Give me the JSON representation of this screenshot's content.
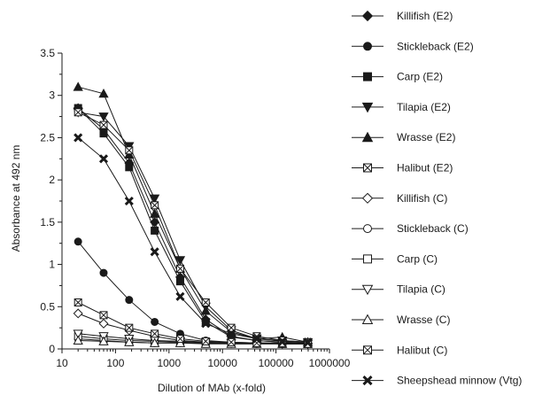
{
  "chart_data": {
    "type": "line",
    "title": "",
    "xlabel": "Dilution of MAb (x-fold)",
    "ylabel": "Absorbance at  492 nm",
    "xscale": "log",
    "xlim": [
      10,
      1000000
    ],
    "ylim": [
      0,
      3.5
    ],
    "x_ticks": [
      10,
      100,
      1000,
      10000,
      100000,
      1000000
    ],
    "x_tick_labels": [
      "10",
      "100",
      "1000",
      "10000",
      "100000",
      "1000000"
    ],
    "y_ticks": [
      0,
      0.5,
      1,
      1.5,
      2,
      2.5,
      3,
      3.5
    ],
    "y_tick_labels": [
      "0",
      "0.5",
      "1",
      "1.5",
      "2",
      "2.5",
      "3",
      "3.5"
    ],
    "grid": false,
    "legend_position": "right",
    "x": [
      20,
      60,
      180,
      540,
      1620,
      4860,
      14580,
      43740,
      131220,
      393660
    ],
    "series": [
      {
        "name": "Killifish (E2)",
        "marker": "diamond",
        "filled": true,
        "values": [
          2.85,
          2.6,
          2.2,
          1.5,
          0.85,
          0.35,
          0.15,
          0.1,
          0.08,
          0.07
        ]
      },
      {
        "name": "Stickleback (E2)",
        "marker": "circle",
        "filled": true,
        "values": [
          1.27,
          0.9,
          0.58,
          0.32,
          0.18,
          0.1,
          0.08,
          0.07,
          0.06,
          0.06
        ]
      },
      {
        "name": "Carp (E2)",
        "marker": "square",
        "filled": true,
        "values": [
          2.85,
          2.55,
          2.15,
          1.4,
          0.8,
          0.32,
          0.14,
          0.1,
          0.08,
          0.07
        ]
      },
      {
        "name": "Tilapia (E2)",
        "marker": "triangle-down",
        "filled": true,
        "values": [
          2.8,
          2.75,
          2.4,
          1.78,
          1.05,
          0.5,
          0.22,
          0.12,
          0.1,
          0.08
        ]
      },
      {
        "name": "Wrasse (E2)",
        "marker": "triangle-up",
        "filled": true,
        "values": [
          3.1,
          3.02,
          2.3,
          1.6,
          0.95,
          0.45,
          0.2,
          0.12,
          0.14,
          0.08
        ]
      },
      {
        "name": "Halibut (E2)",
        "marker": "square-x",
        "filled": false,
        "values": [
          2.8,
          2.65,
          2.35,
          1.7,
          0.95,
          0.55,
          0.25,
          0.15,
          0.1,
          0.08
        ]
      },
      {
        "name": "Killifish (C)",
        "marker": "diamond",
        "filled": false,
        "values": [
          0.42,
          0.3,
          0.22,
          0.15,
          0.1,
          0.08,
          0.07,
          0.07,
          0.06,
          0.06
        ]
      },
      {
        "name": "Stickleback (C)",
        "marker": "circle",
        "filled": false,
        "values": [
          0.12,
          0.1,
          0.08,
          0.07,
          0.07,
          0.07,
          0.06,
          0.06,
          0.06,
          0.06
        ]
      },
      {
        "name": "Carp (C)",
        "marker": "square",
        "filled": false,
        "values": [
          0.15,
          0.12,
          0.1,
          0.09,
          0.08,
          0.07,
          0.07,
          0.07,
          0.06,
          0.06
        ]
      },
      {
        "name": "Tilapia (C)",
        "marker": "triangle-down",
        "filled": false,
        "values": [
          0.18,
          0.15,
          0.12,
          0.1,
          0.09,
          0.08,
          0.07,
          0.07,
          0.07,
          0.06
        ]
      },
      {
        "name": "Wrasse (C)",
        "marker": "triangle-up",
        "filled": false,
        "values": [
          0.1,
          0.09,
          0.08,
          0.07,
          0.07,
          0.06,
          0.06,
          0.06,
          0.06,
          0.06
        ]
      },
      {
        "name": "Halibut (C)",
        "marker": "square-x",
        "filled": false,
        "values": [
          0.55,
          0.4,
          0.25,
          0.18,
          0.12,
          0.09,
          0.08,
          0.07,
          0.07,
          0.06
        ]
      },
      {
        "name": "Sheepshead minnow (Vtg)",
        "marker": "x",
        "filled": true,
        "values": [
          2.5,
          2.25,
          1.75,
          1.15,
          0.62,
          0.3,
          0.18,
          0.12,
          0.09,
          0.08
        ]
      }
    ]
  }
}
